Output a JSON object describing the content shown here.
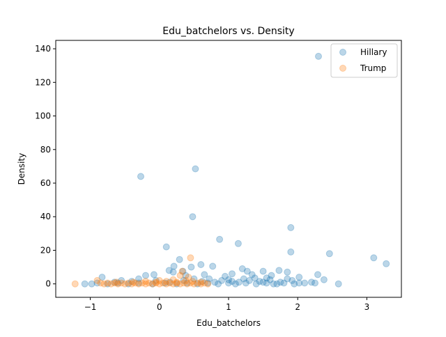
{
  "chart_data": {
    "type": "scatter",
    "title": "Edu_batchelors vs. Density",
    "xlabel": "Edu_batchelors",
    "ylabel": "Density",
    "xlim": [
      -1.5,
      3.5
    ],
    "ylim": [
      -8,
      145
    ],
    "xticks": [
      -1,
      0,
      1,
      2,
      3
    ],
    "xtick_labels": [
      "−1",
      "0",
      "1",
      "2",
      "3"
    ],
    "yticks": [
      0,
      20,
      40,
      60,
      80,
      100,
      120,
      140
    ],
    "ytick_labels": [
      "0",
      "20",
      "40",
      "60",
      "80",
      "100",
      "120",
      "140"
    ],
    "grid": false,
    "legend_position": "top-right",
    "marker_alpha": 0.3,
    "series": [
      {
        "name": "Hillary",
        "color": "#1f77b4",
        "points": [
          [
            2.3,
            135.5
          ],
          [
            0.52,
            68.5
          ],
          [
            -0.27,
            64
          ],
          [
            0.48,
            40
          ],
          [
            1.9,
            33.5
          ],
          [
            0.87,
            26.5
          ],
          [
            1.14,
            24
          ],
          [
            0.1,
            22
          ],
          [
            1.9,
            19
          ],
          [
            2.46,
            18
          ],
          [
            3.1,
            15.5
          ],
          [
            3.28,
            12
          ],
          [
            0.29,
            14.5
          ],
          [
            0.6,
            11.5
          ],
          [
            0.46,
            10
          ],
          [
            0.77,
            10.5
          ],
          [
            0.21,
            10.5
          ],
          [
            1.2,
            9
          ],
          [
            1.27,
            7.5
          ],
          [
            1.5,
            7.5
          ],
          [
            1.73,
            8
          ],
          [
            1.85,
            7
          ],
          [
            0.14,
            8
          ],
          [
            0.34,
            7.5
          ],
          [
            0.2,
            7
          ],
          [
            1.05,
            6
          ],
          [
            1.34,
            5.5
          ],
          [
            1.62,
            5
          ],
          [
            2.02,
            4
          ],
          [
            2.29,
            5.5
          ],
          [
            2.38,
            2.5
          ],
          [
            2.2,
            1
          ],
          [
            2.02,
            0.5
          ],
          [
            2.1,
            0.5
          ],
          [
            2.59,
            0
          ],
          [
            -0.83,
            4
          ],
          [
            -0.08,
            5.5
          ],
          [
            -0.2,
            5
          ],
          [
            0.38,
            5
          ],
          [
            0.65,
            5.5
          ],
          [
            1.55,
            3.5
          ],
          [
            1.92,
            2
          ],
          [
            -0.3,
            3
          ],
          [
            0.95,
            4.5
          ],
          [
            0.72,
            3
          ],
          [
            -1.08,
            0
          ],
          [
            -0.98,
            0
          ],
          [
            -0.9,
            0.5
          ],
          [
            -0.75,
            0
          ],
          [
            -0.6,
            0.5
          ],
          [
            -0.45,
            0
          ],
          [
            -0.3,
            0.5
          ],
          [
            -0.1,
            0
          ],
          [
            0.08,
            0.5
          ],
          [
            0.25,
            0
          ],
          [
            0.4,
            0.5
          ],
          [
            0.55,
            0
          ],
          [
            0.7,
            0.5
          ],
          [
            0.85,
            0
          ],
          [
            1.0,
            0.5
          ],
          [
            1.1,
            0
          ],
          [
            1.25,
            0.5
          ],
          [
            1.4,
            0
          ],
          [
            1.55,
            0.5
          ],
          [
            1.7,
            0
          ],
          [
            1.8,
            0.5
          ],
          [
            1.95,
            0
          ],
          [
            2.25,
            0.5
          ],
          [
            1.3,
            2
          ],
          [
            1.45,
            1.5
          ],
          [
            1.6,
            2.5
          ],
          [
            1.75,
            1
          ],
          [
            0.9,
            2
          ],
          [
            1.0,
            2.5
          ],
          [
            1.15,
            1
          ],
          [
            0.62,
            1.5
          ],
          [
            0.35,
            2
          ],
          [
            0.15,
            1
          ],
          [
            -0.05,
            2
          ],
          [
            -0.4,
            1.5
          ],
          [
            -0.55,
            2
          ],
          [
            -0.65,
            1
          ],
          [
            1.22,
            3
          ],
          [
            1.38,
            3.5
          ],
          [
            1.85,
            3
          ],
          [
            0.5,
            3
          ],
          [
            0.8,
            1
          ],
          [
            1.5,
            1
          ],
          [
            1.65,
            0
          ],
          [
            1.05,
            1.5
          ]
        ]
      },
      {
        "name": "Trump",
        "color": "#ff7f0e",
        "points": [
          [
            0.45,
            15.5
          ],
          [
            0.33,
            7.5
          ],
          [
            0.3,
            5
          ],
          [
            0.42,
            4
          ],
          [
            -1.22,
            0
          ],
          [
            -0.9,
            2
          ],
          [
            -0.85,
            0.5
          ],
          [
            -0.8,
            0
          ],
          [
            -0.75,
            0.5
          ],
          [
            -0.7,
            0
          ],
          [
            -0.65,
            0.5
          ],
          [
            -0.6,
            0
          ],
          [
            -0.55,
            0.5
          ],
          [
            -0.5,
            0
          ],
          [
            -0.45,
            0.5
          ],
          [
            -0.4,
            0
          ],
          [
            -0.35,
            0.5
          ],
          [
            -0.3,
            0
          ],
          [
            -0.25,
            0.5
          ],
          [
            -0.2,
            0
          ],
          [
            -0.15,
            0.5
          ],
          [
            -0.1,
            0
          ],
          [
            -0.05,
            0.5
          ],
          [
            0.0,
            0
          ],
          [
            0.05,
            0.5
          ],
          [
            0.1,
            0
          ],
          [
            0.15,
            0.5
          ],
          [
            0.2,
            0
          ],
          [
            0.25,
            0.5
          ],
          [
            0.3,
            0
          ],
          [
            0.35,
            0.5
          ],
          [
            0.4,
            0
          ],
          [
            0.45,
            0.5
          ],
          [
            0.5,
            0
          ],
          [
            0.55,
            0.5
          ],
          [
            0.6,
            0
          ],
          [
            0.65,
            0.5
          ],
          [
            0.7,
            0
          ],
          [
            -0.2,
            1.5
          ],
          [
            0.0,
            2
          ],
          [
            0.1,
            1.5
          ],
          [
            0.2,
            2.5
          ],
          [
            0.25,
            1
          ],
          [
            -0.05,
            1
          ],
          [
            0.38,
            2
          ],
          [
            0.48,
            1.5
          ],
          [
            -0.62,
            1
          ],
          [
            -0.38,
            1
          ],
          [
            0.6,
            1
          ]
        ]
      }
    ]
  }
}
